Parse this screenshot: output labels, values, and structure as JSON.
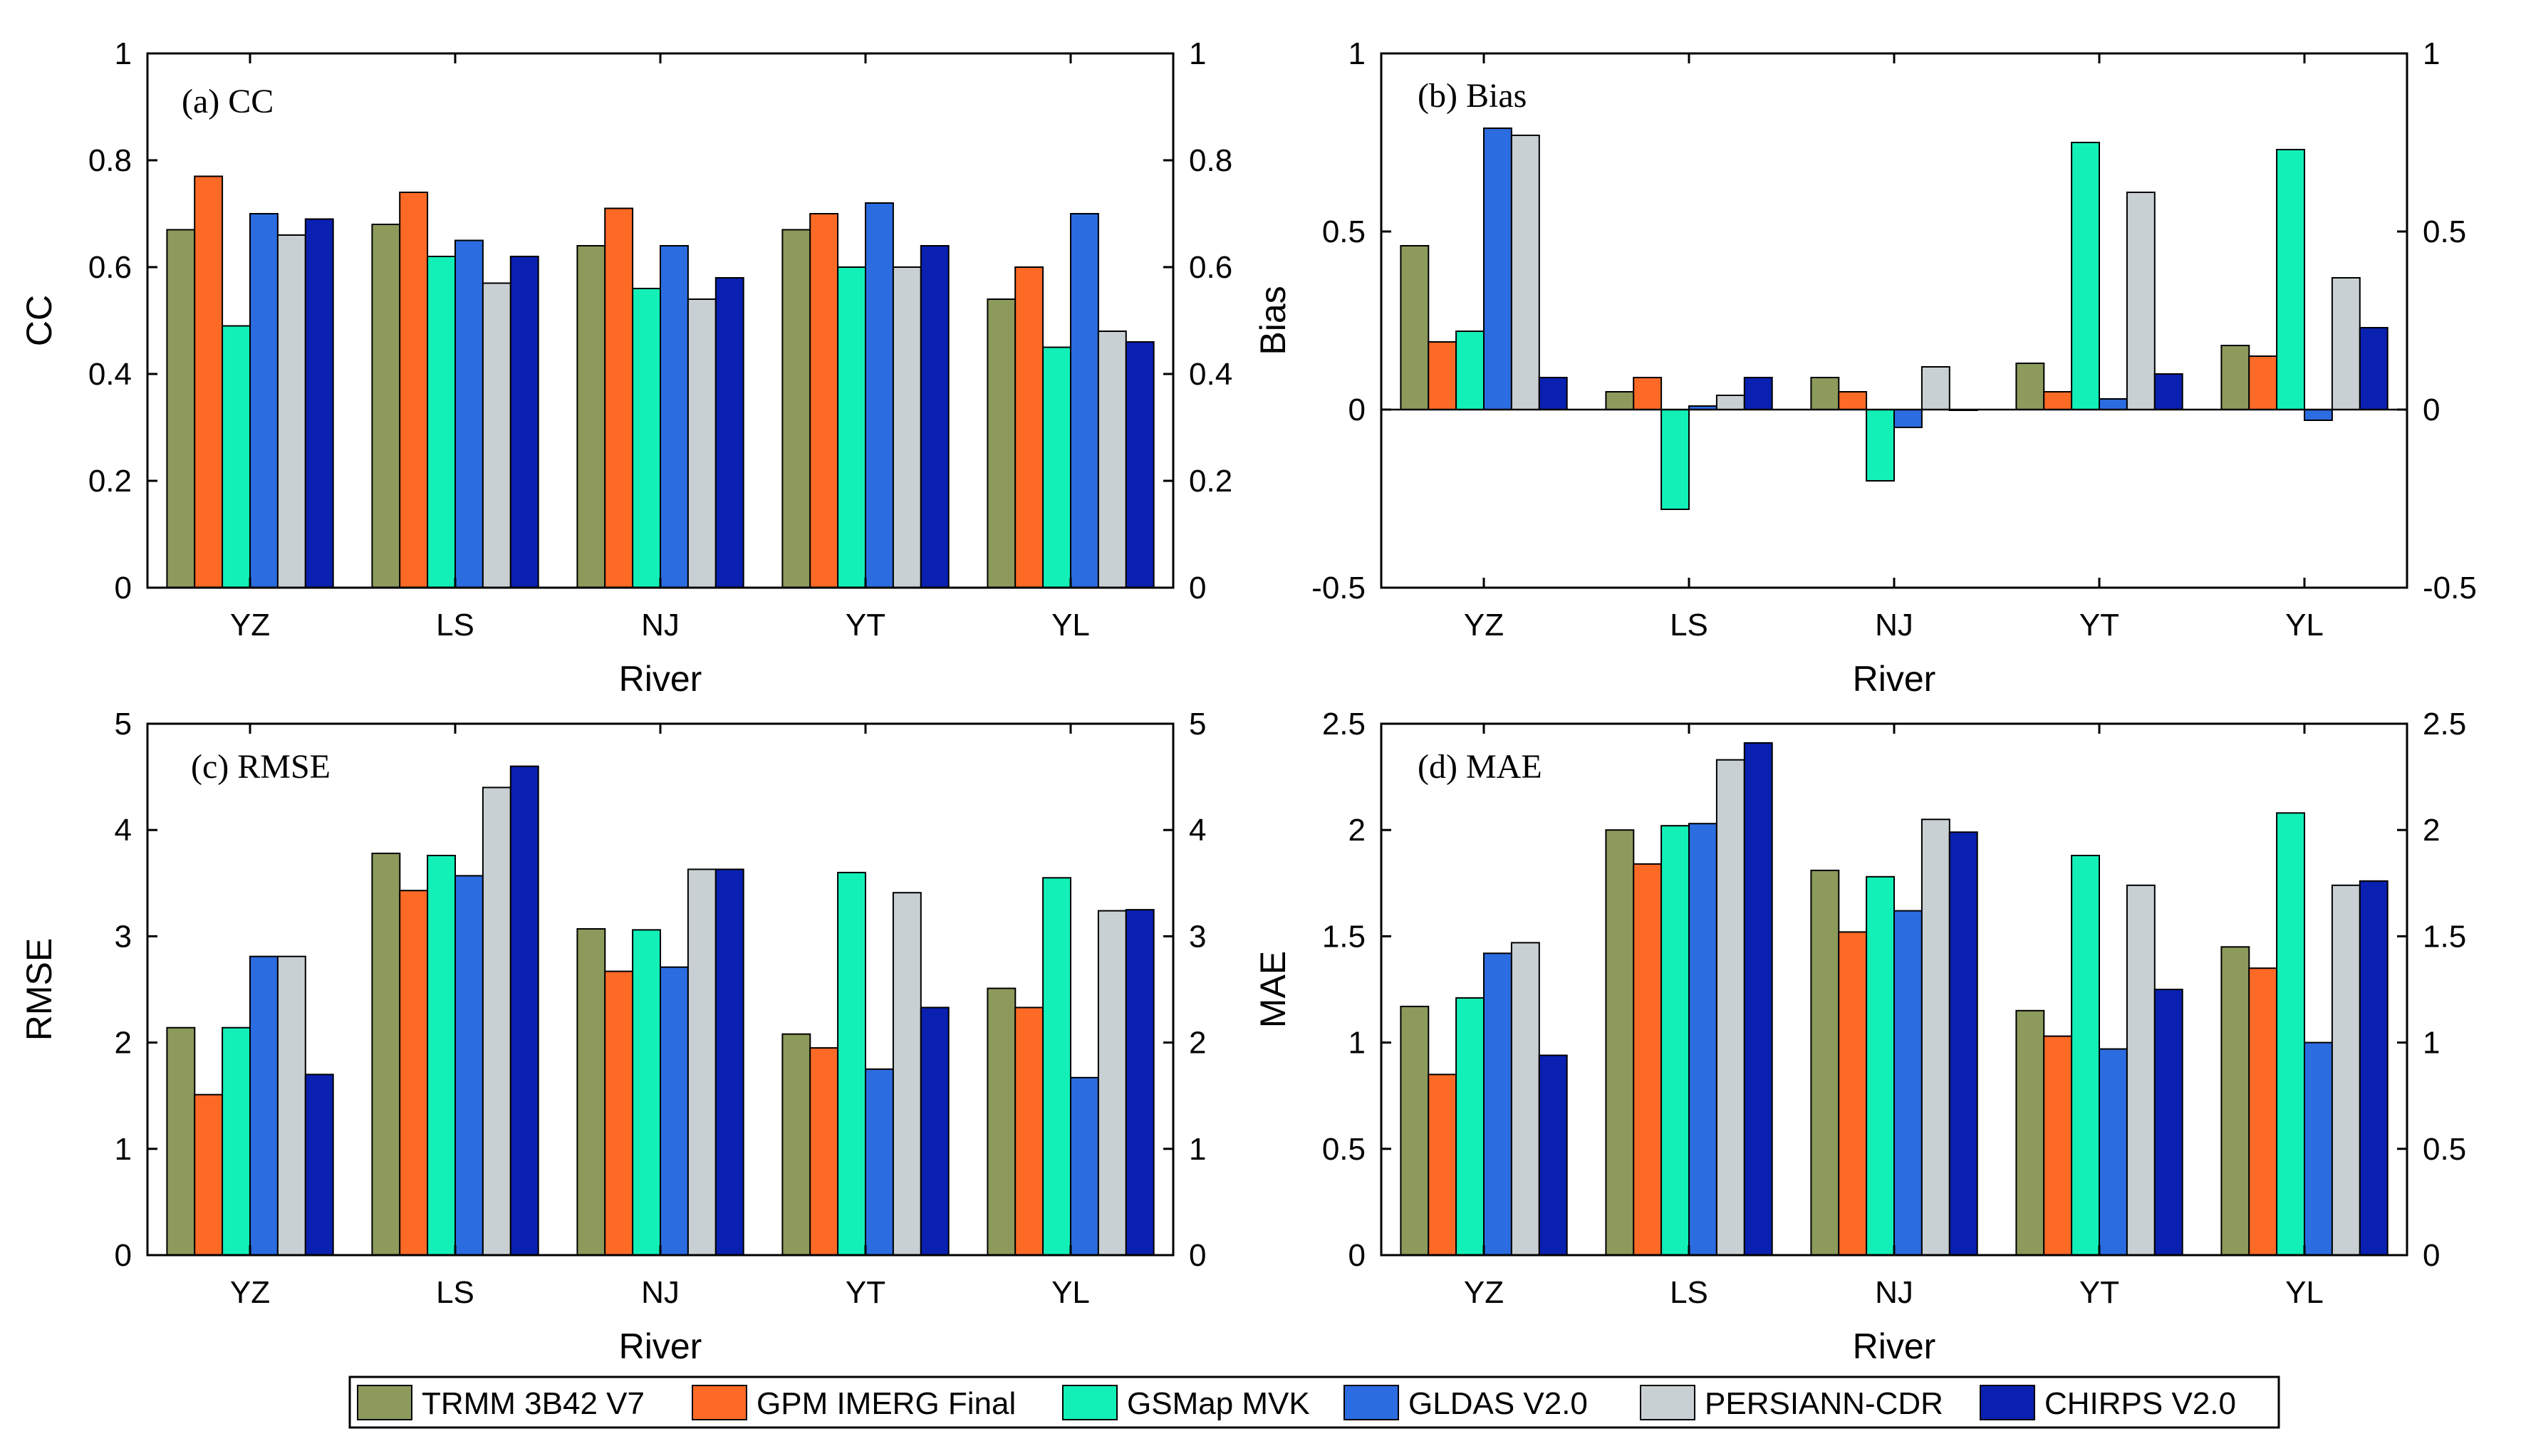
{
  "colors": [
    "#8c9a5b",
    "#fd6a26",
    "#12f0b8",
    "#2b6ce0",
    "#c9d0d3",
    "#0a20b0"
  ],
  "legend": {
    "entries": [
      "TRMM 3B42 V7",
      "GPM IMERG Final",
      "GSMap MVK",
      "GLDAS V2.0",
      "PERSIANN-CDR",
      "CHIRPS V2.0"
    ]
  },
  "chart_data": [
    {
      "type": "bar",
      "title": "(a) CC",
      "xlabel": "River",
      "ylabel": "CC",
      "categories": [
        "YZ",
        "LS",
        "NJ",
        "YT",
        "YL"
      ],
      "ylim": [
        0,
        1
      ],
      "yticks": [
        "0",
        "0.2",
        "0.4",
        "0.6",
        "0.8",
        "1"
      ],
      "ytick_values": [
        0,
        0.2,
        0.4,
        0.6,
        0.8,
        1
      ],
      "series": [
        {
          "name": "TRMM 3B42 V7",
          "values": [
            0.67,
            0.68,
            0.64,
            0.67,
            0.54
          ]
        },
        {
          "name": "GPM IMERG Final",
          "values": [
            0.77,
            0.74,
            0.71,
            0.7,
            0.6
          ]
        },
        {
          "name": "GSMap MVK",
          "values": [
            0.49,
            0.62,
            0.56,
            0.6,
            0.45
          ]
        },
        {
          "name": "GLDAS V2.0",
          "values": [
            0.7,
            0.65,
            0.64,
            0.72,
            0.7
          ]
        },
        {
          "name": "PERSIANN-CDR",
          "values": [
            0.66,
            0.57,
            0.54,
            0.6,
            0.48
          ]
        },
        {
          "name": "CHIRPS V2.0",
          "values": [
            0.69,
            0.62,
            0.58,
            0.64,
            0.46
          ]
        }
      ]
    },
    {
      "type": "bar",
      "title": "(b) Bias",
      "xlabel": "River",
      "ylabel": "Bias",
      "categories": [
        "YZ",
        "LS",
        "NJ",
        "YT",
        "YL"
      ],
      "ylim": [
        -0.5,
        1
      ],
      "yticks": [
        "-0.5",
        "0",
        "0.5",
        "1"
      ],
      "ytick_values": [
        -0.5,
        0,
        0.5,
        1
      ],
      "series": [
        {
          "name": "TRMM 3B42 V7",
          "values": [
            0.46,
            0.05,
            0.09,
            0.13,
            0.18
          ]
        },
        {
          "name": "GPM IMERG Final",
          "values": [
            0.19,
            0.09,
            0.05,
            0.05,
            0.15
          ]
        },
        {
          "name": "GSMap MVK",
          "values": [
            0.22,
            -0.28,
            -0.2,
            0.75,
            0.73
          ]
        },
        {
          "name": "GLDAS V2.0",
          "values": [
            0.79,
            0.01,
            -0.05,
            0.03,
            -0.03
          ]
        },
        {
          "name": "PERSIANN-CDR",
          "values": [
            0.77,
            0.04,
            0.12,
            0.61,
            0.37
          ]
        },
        {
          "name": "CHIRPS V2.0",
          "values": [
            0.09,
            0.09,
            0.0,
            0.1,
            0.23
          ]
        }
      ]
    },
    {
      "type": "bar",
      "title": "(c) RMSE",
      "xlabel": "River",
      "ylabel": "RMSE",
      "categories": [
        "YZ",
        "LS",
        "NJ",
        "YT",
        "YL"
      ],
      "ylim": [
        0,
        5
      ],
      "yticks": [
        "0",
        "1",
        "2",
        "3",
        "4",
        "5"
      ],
      "ytick_values": [
        0,
        1,
        2,
        3,
        4,
        5
      ],
      "series": [
        {
          "name": "TRMM 3B42 V7",
          "values": [
            2.14,
            3.78,
            3.07,
            2.08,
            2.51
          ]
        },
        {
          "name": "GPM IMERG Final",
          "values": [
            1.51,
            3.43,
            2.67,
            1.95,
            2.33
          ]
        },
        {
          "name": "GSMap MVK",
          "values": [
            2.14,
            3.76,
            3.06,
            3.6,
            3.55
          ]
        },
        {
          "name": "GLDAS V2.0",
          "values": [
            2.81,
            3.57,
            2.71,
            1.75,
            1.67
          ]
        },
        {
          "name": "PERSIANN-CDR",
          "values": [
            2.81,
            4.4,
            3.63,
            3.41,
            3.24
          ]
        },
        {
          "name": "CHIRPS V2.0",
          "values": [
            1.7,
            4.6,
            3.63,
            2.33,
            3.25
          ]
        }
      ]
    },
    {
      "type": "bar",
      "title": "(d) MAE",
      "xlabel": "River",
      "ylabel": "MAE",
      "categories": [
        "YZ",
        "LS",
        "NJ",
        "YT",
        "YL"
      ],
      "ylim": [
        0,
        2.5
      ],
      "yticks": [
        "0",
        "0.5",
        "1",
        "1.5",
        "2",
        "2.5"
      ],
      "ytick_values": [
        0,
        0.5,
        1,
        1.5,
        2,
        2.5
      ],
      "series": [
        {
          "name": "TRMM 3B42 V7",
          "values": [
            1.17,
            2.0,
            1.81,
            1.15,
            1.45
          ]
        },
        {
          "name": "GPM IMERG Final",
          "values": [
            0.85,
            1.84,
            1.52,
            1.03,
            1.35
          ]
        },
        {
          "name": "GSMap MVK",
          "values": [
            1.21,
            2.02,
            1.78,
            1.88,
            2.08
          ]
        },
        {
          "name": "GLDAS V2.0",
          "values": [
            1.42,
            2.03,
            1.62,
            0.97,
            1.0
          ]
        },
        {
          "name": "PERSIANN-CDR",
          "values": [
            1.47,
            2.33,
            2.05,
            1.74,
            1.74
          ]
        },
        {
          "name": "CHIRPS V2.0",
          "values": [
            0.94,
            2.41,
            1.99,
            1.25,
            1.76
          ]
        }
      ]
    }
  ]
}
